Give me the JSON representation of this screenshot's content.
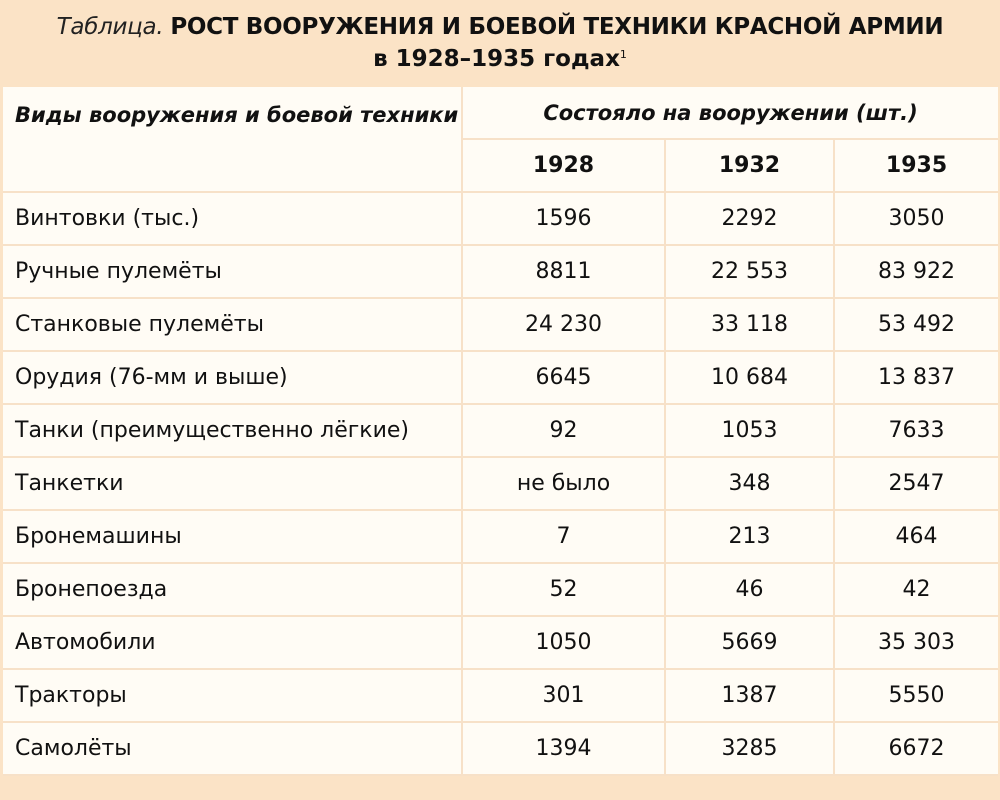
{
  "title": {
    "prefix": "Таблица.",
    "main": "РОСТ ВООРУЖЕНИЯ И БОЕВОЙ ТЕХНИКИ КРАСНОЙ АРМИИ",
    "line2": "в 1928–1935 годах",
    "footnote_mark": "1"
  },
  "colors": {
    "header_band": "#fbe3c6",
    "table_bg": "#fffcf5",
    "grid": "#f7e1c8"
  },
  "table": {
    "col1_header": "Виды вооружения и боевой техники",
    "group_header": "Состояло на вооружении (шт.)",
    "years": [
      "1928",
      "1932",
      "1935"
    ],
    "rows": [
      {
        "name": "Винтовки (тыс.)",
        "values": [
          "1596",
          "2292",
          "3050"
        ]
      },
      {
        "name": "Ручные пулемёты",
        "values": [
          "8811",
          "22 553",
          "83 922"
        ]
      },
      {
        "name": "Станковые пулемёты",
        "values": [
          "24 230",
          "33 118",
          "53 492"
        ]
      },
      {
        "name": "Орудия (76-мм и выше)",
        "values": [
          "6645",
          "10 684",
          "13 837"
        ]
      },
      {
        "name": "Танки (преимущественно лёгкие)",
        "values": [
          "92",
          "1053",
          "7633"
        ]
      },
      {
        "name": "Танкетки",
        "values": [
          "не было",
          "348",
          "2547"
        ]
      },
      {
        "name": "Бронемашины",
        "values": [
          "7",
          "213",
          "464"
        ]
      },
      {
        "name": "Бронепоезда",
        "values": [
          "52",
          "46",
          "42"
        ]
      },
      {
        "name": "Автомобили",
        "values": [
          "1050",
          "5669",
          "35 303"
        ]
      },
      {
        "name": "Тракторы",
        "values": [
          "301",
          "1387",
          "5550"
        ]
      },
      {
        "name": "Самолёты",
        "values": [
          "1394",
          "3285",
          "6672"
        ]
      }
    ]
  }
}
